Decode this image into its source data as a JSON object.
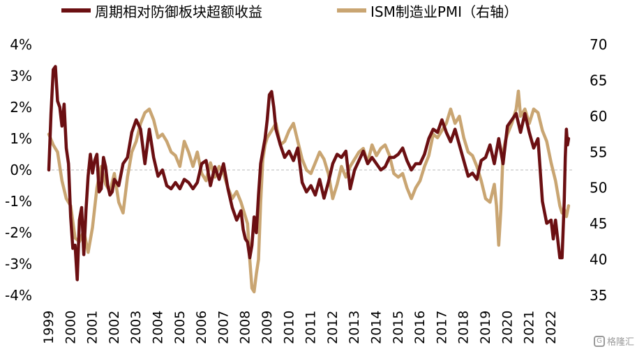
{
  "chart_data": {
    "type": "line",
    "legend_placement": "top",
    "grid": false,
    "x_range": [
      1999.0,
      2022.75
    ],
    "x_ticks": [
      "1999",
      "2000",
      "2001",
      "2002",
      "2003",
      "2004",
      "2005",
      "2006",
      "2007",
      "2008",
      "2009",
      "2010",
      "2011",
      "2012",
      "2013",
      "2014",
      "2015",
      "2016",
      "2017",
      "2018",
      "2019",
      "2020",
      "2021",
      "2022"
    ],
    "y_left": {
      "range": [
        -4,
        4
      ],
      "ticks": [
        "-4%",
        "-3%",
        "-2%",
        "-1%",
        "0%",
        "1%",
        "2%",
        "3%",
        "4%"
      ]
    },
    "y_right": {
      "range": [
        35,
        70
      ],
      "ticks": [
        "35",
        "40",
        "45",
        "50",
        "55",
        "60",
        "65",
        "70"
      ]
    },
    "series": [
      {
        "name": "周期相对防御板块超额收益",
        "axis": "left",
        "color": "#6b0f12",
        "points": [
          [
            1999.0,
            0.0
          ],
          [
            1999.1,
            1.8
          ],
          [
            1999.2,
            3.2
          ],
          [
            1999.3,
            3.3
          ],
          [
            1999.4,
            2.2
          ],
          [
            1999.5,
            2.0
          ],
          [
            1999.6,
            1.4
          ],
          [
            1999.7,
            2.1
          ],
          [
            1999.8,
            0.7
          ],
          [
            1999.9,
            0.2
          ],
          [
            2000.0,
            -1.5
          ],
          [
            2000.1,
            -2.5
          ],
          [
            2000.2,
            -2.4
          ],
          [
            2000.3,
            -3.5
          ],
          [
            2000.4,
            -1.6
          ],
          [
            2000.5,
            -1.2
          ],
          [
            2000.6,
            -2.7
          ],
          [
            2000.7,
            -1.3
          ],
          [
            2000.8,
            -0.2
          ],
          [
            2000.9,
            0.5
          ],
          [
            2001.0,
            -0.1
          ],
          [
            2001.1,
            0.3
          ],
          [
            2001.2,
            0.5
          ],
          [
            2001.3,
            -0.7
          ],
          [
            2001.4,
            -0.6
          ],
          [
            2001.5,
            0.4
          ],
          [
            2001.6,
            0.1
          ],
          [
            2001.7,
            -0.5
          ],
          [
            2001.8,
            -0.8
          ],
          [
            2001.9,
            -0.7
          ],
          [
            2002.0,
            -0.3
          ],
          [
            2002.2,
            -0.5
          ],
          [
            2002.4,
            0.2
          ],
          [
            2002.6,
            0.4
          ],
          [
            2002.8,
            1.2
          ],
          [
            2003.0,
            1.6
          ],
          [
            2003.2,
            1.3
          ],
          [
            2003.4,
            0.2
          ],
          [
            2003.6,
            1.3
          ],
          [
            2003.8,
            0.4
          ],
          [
            2004.0,
            -0.2
          ],
          [
            2004.2,
            0.0
          ],
          [
            2004.4,
            -0.5
          ],
          [
            2004.6,
            -0.6
          ],
          [
            2004.8,
            -0.4
          ],
          [
            2005.0,
            -0.6
          ],
          [
            2005.2,
            -0.3
          ],
          [
            2005.4,
            -0.4
          ],
          [
            2005.6,
            -0.6
          ],
          [
            2005.8,
            -0.4
          ],
          [
            2006.0,
            0.2
          ],
          [
            2006.2,
            0.3
          ],
          [
            2006.4,
            -0.5
          ],
          [
            2006.6,
            0.1
          ],
          [
            2006.8,
            -0.3
          ],
          [
            2007.0,
            0.2
          ],
          [
            2007.2,
            -0.6
          ],
          [
            2007.4,
            -1.2
          ],
          [
            2007.6,
            -1.6
          ],
          [
            2007.8,
            -1.3
          ],
          [
            2007.9,
            -1.9
          ],
          [
            2008.0,
            -2.2
          ],
          [
            2008.1,
            -2.3
          ],
          [
            2008.2,
            -2.8
          ],
          [
            2008.3,
            -2.4
          ],
          [
            2008.4,
            -1.5
          ],
          [
            2008.5,
            -2.0
          ],
          [
            2008.6,
            -0.8
          ],
          [
            2008.7,
            0.2
          ],
          [
            2008.8,
            0.6
          ],
          [
            2008.9,
            1.0
          ],
          [
            2009.0,
            1.6
          ],
          [
            2009.1,
            2.4
          ],
          [
            2009.2,
            2.5
          ],
          [
            2009.3,
            2.0
          ],
          [
            2009.4,
            1.3
          ],
          [
            2009.6,
            0.8
          ],
          [
            2009.8,
            0.4
          ],
          [
            2010.0,
            0.6
          ],
          [
            2010.2,
            0.3
          ],
          [
            2010.4,
            0.7
          ],
          [
            2010.6,
            -0.4
          ],
          [
            2010.8,
            -0.7
          ],
          [
            2011.0,
            -0.5
          ],
          [
            2011.2,
            -0.8
          ],
          [
            2011.4,
            -0.3
          ],
          [
            2011.6,
            -0.9
          ],
          [
            2011.8,
            -0.4
          ],
          [
            2012.0,
            0.2
          ],
          [
            2012.2,
            0.5
          ],
          [
            2012.4,
            0.4
          ],
          [
            2012.6,
            0.6
          ],
          [
            2012.8,
            -0.6
          ],
          [
            2013.0,
            0.0
          ],
          [
            2013.2,
            0.3
          ],
          [
            2013.4,
            0.6
          ],
          [
            2013.6,
            0.2
          ],
          [
            2013.8,
            0.4
          ],
          [
            2014.0,
            0.2
          ],
          [
            2014.2,
            0.0
          ],
          [
            2014.4,
            0.1
          ],
          [
            2014.6,
            0.4
          ],
          [
            2014.8,
            0.4
          ],
          [
            2015.0,
            0.5
          ],
          [
            2015.2,
            0.7
          ],
          [
            2015.4,
            0.3
          ],
          [
            2015.6,
            0.0
          ],
          [
            2015.8,
            0.2
          ],
          [
            2016.0,
            0.2
          ],
          [
            2016.2,
            0.5
          ],
          [
            2016.4,
            1.0
          ],
          [
            2016.6,
            1.3
          ],
          [
            2016.8,
            1.2
          ],
          [
            2017.0,
            1.6
          ],
          [
            2017.2,
            1.2
          ],
          [
            2017.4,
            0.9
          ],
          [
            2017.6,
            1.3
          ],
          [
            2017.8,
            0.8
          ],
          [
            2018.0,
            0.3
          ],
          [
            2018.2,
            -0.2
          ],
          [
            2018.4,
            -0.1
          ],
          [
            2018.6,
            -0.3
          ],
          [
            2018.8,
            0.3
          ],
          [
            2019.0,
            0.4
          ],
          [
            2019.2,
            0.8
          ],
          [
            2019.4,
            0.2
          ],
          [
            2019.6,
            1.0
          ],
          [
            2019.8,
            0.2
          ],
          [
            2020.0,
            1.4
          ],
          [
            2020.2,
            1.6
          ],
          [
            2020.4,
            1.8
          ],
          [
            2020.6,
            1.2
          ],
          [
            2020.8,
            1.8
          ],
          [
            2021.0,
            1.2
          ],
          [
            2021.2,
            0.7
          ],
          [
            2021.4,
            1.0
          ],
          [
            2021.6,
            -1.0
          ],
          [
            2021.8,
            -1.7
          ],
          [
            2022.0,
            -1.6
          ],
          [
            2022.1,
            -2.2
          ],
          [
            2022.2,
            -1.6
          ],
          [
            2022.3,
            -2.2
          ],
          [
            2022.4,
            -2.8
          ],
          [
            2022.5,
            -2.8
          ],
          [
            2022.6,
            -1.0
          ],
          [
            2022.65,
            0.4
          ],
          [
            2022.7,
            1.3
          ],
          [
            2022.75,
            0.8
          ],
          [
            2022.8,
            1.0
          ]
        ]
      },
      {
        "name": "ISM制造业PMI（右轴）",
        "axis": "right",
        "color": "#c9a572",
        "points": [
          [
            1999.0,
            57.5
          ],
          [
            1999.2,
            56.0
          ],
          [
            1999.4,
            55.0
          ],
          [
            1999.6,
            51.0
          ],
          [
            1999.8,
            48.5
          ],
          [
            2000.0,
            47.5
          ],
          [
            2000.2,
            43.0
          ],
          [
            2000.4,
            42.5
          ],
          [
            2000.6,
            44.0
          ],
          [
            2000.8,
            41.0
          ],
          [
            2001.0,
            44.5
          ],
          [
            2001.2,
            50.0
          ],
          [
            2001.4,
            53.0
          ],
          [
            2001.6,
            50.5
          ],
          [
            2001.8,
            49.5
          ],
          [
            2002.0,
            52.0
          ],
          [
            2002.2,
            48.0
          ],
          [
            2002.4,
            46.5
          ],
          [
            2002.6,
            51.5
          ],
          [
            2002.8,
            55.0
          ],
          [
            2003.0,
            56.5
          ],
          [
            2003.2,
            59.0
          ],
          [
            2003.4,
            60.5
          ],
          [
            2003.6,
            61.0
          ],
          [
            2003.8,
            59.5
          ],
          [
            2004.0,
            57.0
          ],
          [
            2004.2,
            57.5
          ],
          [
            2004.4,
            56.5
          ],
          [
            2004.6,
            55.0
          ],
          [
            2004.8,
            54.5
          ],
          [
            2005.0,
            53.0
          ],
          [
            2005.2,
            56.5
          ],
          [
            2005.4,
            55.0
          ],
          [
            2005.6,
            53.0
          ],
          [
            2005.8,
            55.0
          ],
          [
            2006.0,
            52.0
          ],
          [
            2006.2,
            51.0
          ],
          [
            2006.4,
            53.5
          ],
          [
            2006.6,
            51.5
          ],
          [
            2006.8,
            53.0
          ],
          [
            2007.0,
            52.0
          ],
          [
            2007.2,
            50.0
          ],
          [
            2007.4,
            48.5
          ],
          [
            2007.6,
            49.5
          ],
          [
            2007.8,
            48.0
          ],
          [
            2008.0,
            46.0
          ],
          [
            2008.1,
            45.0
          ],
          [
            2008.2,
            40.0
          ],
          [
            2008.3,
            36.0
          ],
          [
            2008.4,
            35.5
          ],
          [
            2008.5,
            38.0
          ],
          [
            2008.6,
            40.0
          ],
          [
            2008.7,
            48.0
          ],
          [
            2008.8,
            54.0
          ],
          [
            2008.9,
            56.0
          ],
          [
            2009.0,
            57.0
          ],
          [
            2009.2,
            58.0
          ],
          [
            2009.4,
            59.0
          ],
          [
            2009.6,
            56.0
          ],
          [
            2009.8,
            56.5
          ],
          [
            2010.0,
            58.0
          ],
          [
            2010.2,
            59.0
          ],
          [
            2010.4,
            56.5
          ],
          [
            2010.6,
            54.0
          ],
          [
            2010.8,
            52.5
          ],
          [
            2011.0,
            52.0
          ],
          [
            2011.2,
            53.5
          ],
          [
            2011.4,
            55.0
          ],
          [
            2011.6,
            54.0
          ],
          [
            2011.8,
            52.0
          ],
          [
            2012.0,
            48.5
          ],
          [
            2012.2,
            50.5
          ],
          [
            2012.4,
            53.0
          ],
          [
            2012.6,
            51.5
          ],
          [
            2012.8,
            53.0
          ],
          [
            2013.0,
            54.0
          ],
          [
            2013.2,
            55.0
          ],
          [
            2013.4,
            55.5
          ],
          [
            2013.6,
            53.5
          ],
          [
            2013.8,
            56.0
          ],
          [
            2014.0,
            54.5
          ],
          [
            2014.2,
            55.5
          ],
          [
            2014.4,
            56.0
          ],
          [
            2014.6,
            54.5
          ],
          [
            2014.8,
            52.0
          ],
          [
            2015.0,
            51.5
          ],
          [
            2015.2,
            52.0
          ],
          [
            2015.4,
            50.0
          ],
          [
            2015.6,
            48.5
          ],
          [
            2015.8,
            50.0
          ],
          [
            2016.0,
            51.0
          ],
          [
            2016.2,
            53.0
          ],
          [
            2016.4,
            54.5
          ],
          [
            2016.6,
            57.5
          ],
          [
            2016.8,
            57.0
          ],
          [
            2017.0,
            58.0
          ],
          [
            2017.2,
            59.0
          ],
          [
            2017.4,
            61.0
          ],
          [
            2017.6,
            59.0
          ],
          [
            2017.8,
            60.0
          ],
          [
            2018.0,
            57.0
          ],
          [
            2018.2,
            55.0
          ],
          [
            2018.4,
            54.5
          ],
          [
            2018.6,
            53.0
          ],
          [
            2018.8,
            51.0
          ],
          [
            2019.0,
            48.5
          ],
          [
            2019.2,
            48.0
          ],
          [
            2019.4,
            50.5
          ],
          [
            2019.5,
            47.5
          ],
          [
            2019.6,
            42.0
          ],
          [
            2019.7,
            47.0
          ],
          [
            2019.8,
            55.0
          ],
          [
            2019.9,
            56.5
          ],
          [
            2020.0,
            57.5
          ],
          [
            2020.2,
            59.0
          ],
          [
            2020.4,
            61.0
          ],
          [
            2020.5,
            63.5
          ],
          [
            2020.6,
            60.0
          ],
          [
            2020.8,
            61.0
          ],
          [
            2021.0,
            59.0
          ],
          [
            2021.2,
            61.0
          ],
          [
            2021.4,
            60.5
          ],
          [
            2021.6,
            58.0
          ],
          [
            2021.8,
            56.5
          ],
          [
            2022.0,
            53.5
          ],
          [
            2022.2,
            51.0
          ],
          [
            2022.4,
            47.5
          ],
          [
            2022.5,
            46.5
          ],
          [
            2022.6,
            47.0
          ],
          [
            2022.7,
            46.0
          ],
          [
            2022.8,
            47.5
          ]
        ]
      }
    ]
  },
  "watermark": {
    "logo": "G",
    "text": "格隆汇"
  }
}
